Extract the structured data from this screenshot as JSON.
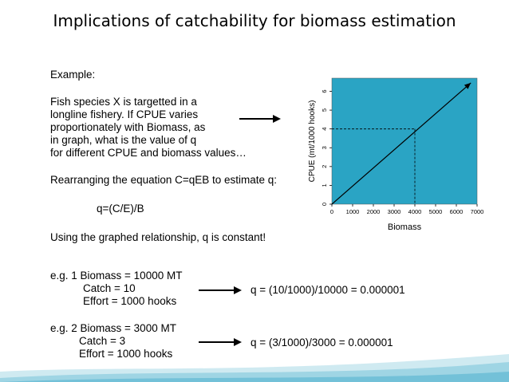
{
  "slide": {
    "title": "Implications of catchability for biomass estimation",
    "example_label": "Example:",
    "paragraph_lines": [
      "Fish species X is targetted in a",
      "longline fishery. If CPUE varies",
      "proportionately with Biomass, as",
      "in graph, what is the value of q",
      "for different CPUE and biomass values…"
    ],
    "rearranging": "Rearranging the equation C=qEB to estimate q:",
    "formula": "q=(C/E)/B",
    "constant_note": "Using the graphed relationship, q is constant!",
    "example1": {
      "line1": "e.g. 1  Biomass = 10000 MT",
      "line2": "Catch = 10",
      "line3": "Effort = 1000 hooks",
      "result": "q = (10/1000)/10000 = 0.000001"
    },
    "example2": {
      "line1": "e.g. 2  Biomass = 3000 MT",
      "line2": "Catch = 3",
      "line3": "Effort = 1000 hooks",
      "result": "q = (3/1000)/3000 = 0.000001"
    }
  },
  "chart_data": {
    "type": "line",
    "xlabel": "Biomass",
    "ylabel": "CPUE (mt/1000 hooks)",
    "xlim": [
      0,
      7000
    ],
    "ylim": [
      0,
      6.7
    ],
    "x_ticks": [
      0,
      1000,
      2000,
      3000,
      4000,
      5000,
      6000,
      7000
    ],
    "y_ticks": [
      0,
      1,
      2,
      3,
      4,
      5,
      6
    ],
    "series": [
      {
        "x": [
          0,
          6700
        ],
        "y": [
          0,
          6.45
        ]
      }
    ],
    "guide_point": {
      "x": 4000,
      "y": 4
    },
    "background_color": "#2aa4c4",
    "line_color": "#000000"
  }
}
